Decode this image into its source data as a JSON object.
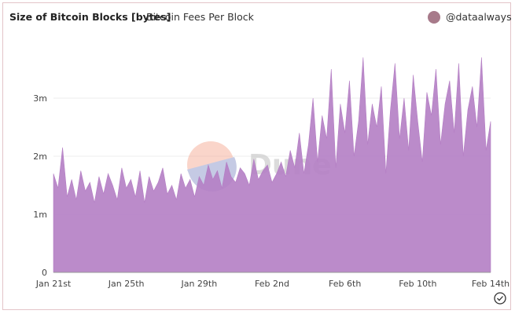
{
  "chart_data": {
    "type": "area",
    "title": "Size of Bitcoin Blocks [bytes]",
    "tab": "Bitcoin Fees Per Block",
    "author": "@dataalways",
    "watermark": "Dune",
    "color": "#b47ec4",
    "grid": true,
    "ylim": [
      0,
      4000000
    ],
    "yticks": [
      0,
      {
        "value": 1000000,
        "label": "1m"
      },
      {
        "value": 2000000,
        "label": "2m"
      },
      {
        "value": 3000000,
        "label": "3m"
      }
    ],
    "categories": [
      "Jan 21st",
      null,
      null,
      null,
      null,
      null,
      null,
      null,
      null,
      null,
      null,
      null,
      null,
      null,
      null,
      null,
      "Jan 25th",
      null,
      null,
      null,
      null,
      null,
      null,
      null,
      null,
      null,
      null,
      null,
      null,
      null,
      null,
      null,
      "Jan 29th",
      null,
      null,
      null,
      null,
      null,
      null,
      null,
      null,
      null,
      null,
      null,
      null,
      null,
      null,
      null,
      "Feb 2nd",
      null,
      null,
      null,
      null,
      null,
      null,
      null,
      null,
      null,
      null,
      null,
      null,
      null,
      null,
      null,
      "Feb 6th",
      null,
      null,
      null,
      null,
      null,
      null,
      null,
      null,
      null,
      null,
      null,
      null,
      null,
      null,
      null,
      "Feb 10th",
      null,
      null,
      null,
      null,
      null,
      null,
      null,
      null,
      null,
      null,
      null,
      null,
      null,
      null,
      null,
      "Feb 14th"
    ],
    "values": [
      1700000,
      1450000,
      2150000,
      1300000,
      1600000,
      1250000,
      1750000,
      1400000,
      1550000,
      1200000,
      1650000,
      1350000,
      1700000,
      1500000,
      1250000,
      1800000,
      1450000,
      1600000,
      1300000,
      1750000,
      1200000,
      1650000,
      1400000,
      1550000,
      1800000,
      1350000,
      1500000,
      1250000,
      1700000,
      1450000,
      1600000,
      1300000,
      1650000,
      1500000,
      1850000,
      1600000,
      1750000,
      1450000,
      1900000,
      1650000,
      1550000,
      1800000,
      1700000,
      1500000,
      1950000,
      1600000,
      1750000,
      1850000,
      1550000,
      1700000,
      1900000,
      1650000,
      2100000,
      1800000,
      2400000,
      1700000,
      2200000,
      3000000,
      1900000,
      2700000,
      2300000,
      3500000,
      1800000,
      2900000,
      2400000,
      3300000,
      2000000,
      2600000,
      3700000,
      2200000,
      2900000,
      2500000,
      3200000,
      1700000,
      2800000,
      3600000,
      2300000,
      3000000,
      2100000,
      3400000,
      2600000,
      1900000,
      3100000,
      2700000,
      3500000,
      2200000,
      2900000,
      3300000,
      2400000,
      3600000,
      2000000,
      2800000,
      3200000,
      2500000,
      3700000,
      2100000,
      2600000
    ]
  }
}
